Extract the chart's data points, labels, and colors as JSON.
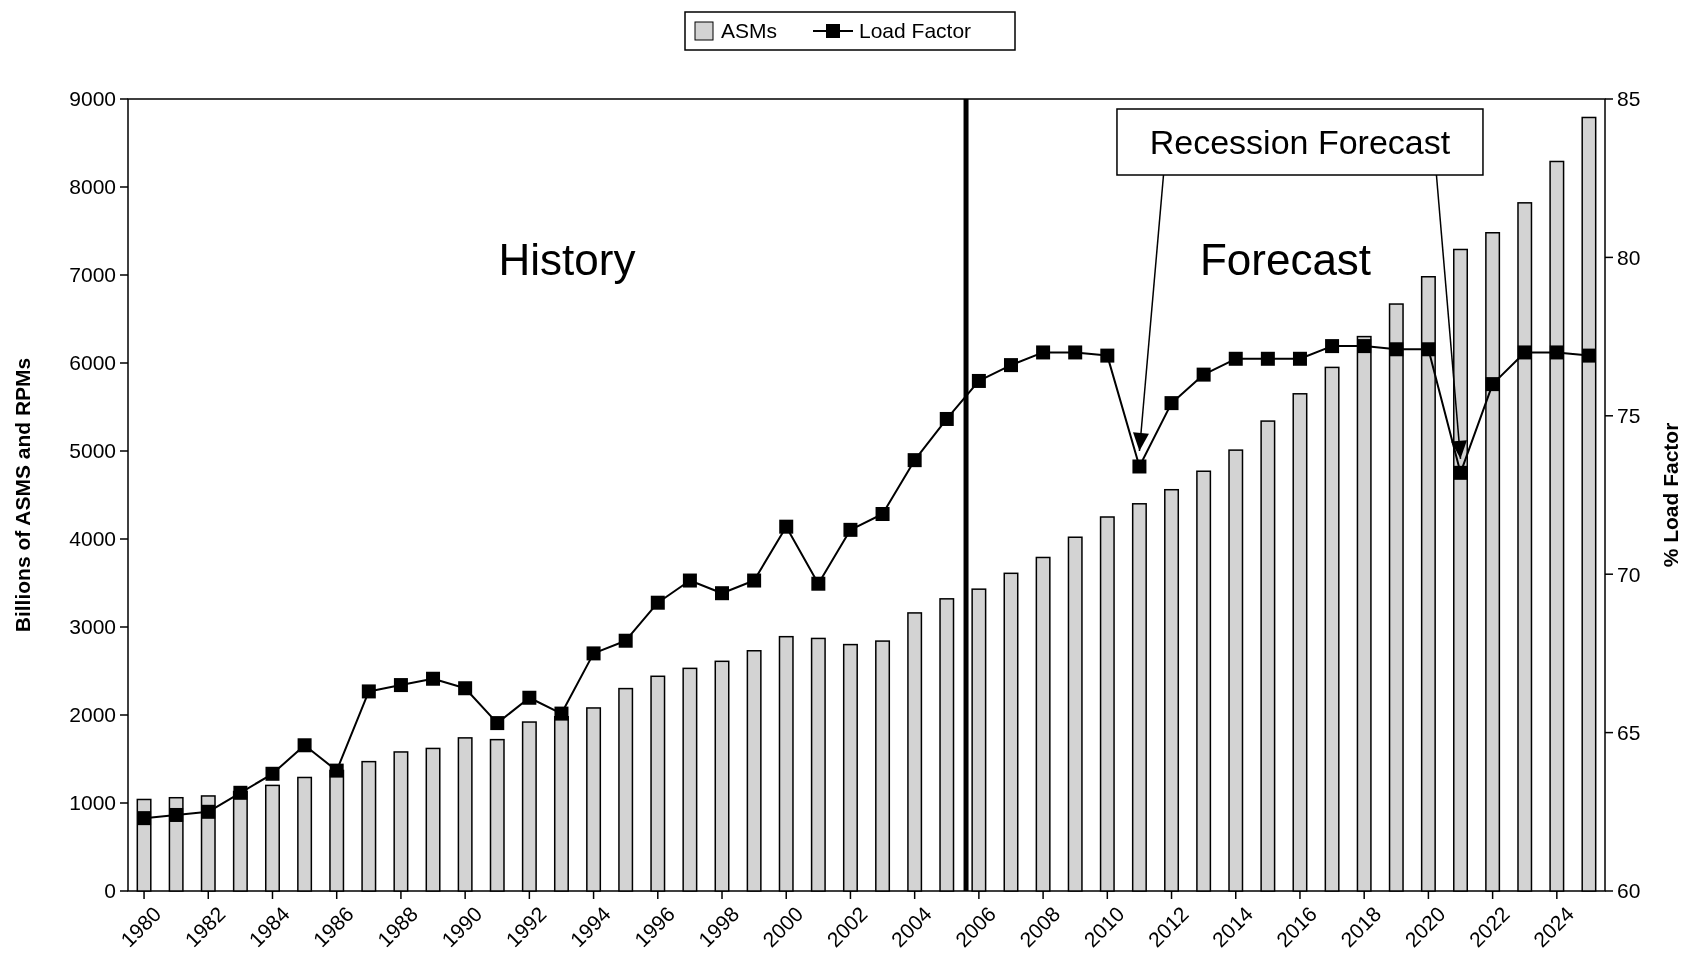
{
  "chart_data": {
    "type": "bar",
    "x": [
      1980,
      1981,
      1982,
      1983,
      1984,
      1985,
      1986,
      1987,
      1988,
      1989,
      1990,
      1991,
      1992,
      1993,
      1994,
      1995,
      1996,
      1997,
      1998,
      1999,
      2000,
      2001,
      2002,
      2003,
      2004,
      2005,
      2006,
      2007,
      2008,
      2009,
      2010,
      2011,
      2012,
      2013,
      2014,
      2015,
      2016,
      2017,
      2018,
      2019,
      2020,
      2021,
      2022,
      2023,
      2024,
      2025
    ],
    "xlim": [
      1979.5,
      2025.5
    ],
    "xticks": [
      1980,
      1982,
      1984,
      1986,
      1988,
      1990,
      1992,
      1994,
      1996,
      1998,
      2000,
      2002,
      2004,
      2006,
      2008,
      2010,
      2012,
      2014,
      2016,
      2018,
      2020,
      2022,
      2024
    ],
    "series": [
      {
        "name": "ASMs",
        "color": "#d3d3d3",
        "values": [
          1040,
          1060,
          1080,
          1130,
          1200,
          1290,
          1370,
          1470,
          1580,
          1620,
          1740,
          1720,
          1920,
          1980,
          2080,
          2300,
          2440,
          2530,
          2610,
          2730,
          2890,
          2870,
          2800,
          2840,
          3160,
          3320,
          3430,
          3610,
          3790,
          4020,
          4250,
          4400,
          4560,
          4770,
          5010,
          5340,
          5650,
          5950,
          6300,
          6670,
          6980,
          7290,
          7480,
          7820,
          8290,
          8790
        ]
      },
      {
        "name": "Load Factor",
        "type": "line",
        "axis": "y2",
        "color": "#000000",
        "marker": "square",
        "values": [
          62.3,
          62.4,
          62.5,
          63.1,
          63.7,
          64.6,
          63.8,
          66.3,
          66.5,
          66.7,
          66.4,
          65.3,
          66.1,
          65.6,
          67.5,
          67.9,
          69.1,
          69.8,
          69.4,
          69.8,
          71.5,
          69.7,
          71.4,
          71.9,
          73.6,
          74.9,
          76.1,
          76.6,
          77.0,
          77.0,
          76.9,
          73.4,
          75.4,
          76.3,
          76.8,
          76.8,
          76.8,
          77.2,
          77.2,
          77.1,
          77.1,
          73.2,
          76.0,
          77.0,
          77.0,
          76.9
        ]
      }
    ],
    "ylabel": "Billions of ASMS and RPMs",
    "y2label": "% Load Factor",
    "ylim": [
      0,
      9000
    ],
    "yticks": [
      0,
      1000,
      2000,
      3000,
      4000,
      5000,
      6000,
      7000,
      8000,
      9000
    ],
    "y2lim": [
      60,
      85
    ],
    "y2ticks": [
      60,
      65,
      70,
      75,
      80,
      85
    ],
    "ref_lines": [
      {
        "axis": "x",
        "value": 2005.6,
        "color": "#000000"
      }
    ],
    "annotations": [
      "History",
      "Forecast",
      {
        "text": "Recession Forecast",
        "x": 2011,
        "y": 5000
      }
    ],
    "legend": "top",
    "grid": false
  }
}
